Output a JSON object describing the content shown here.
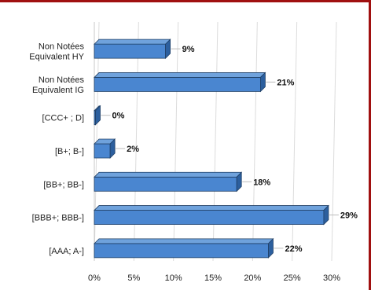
{
  "chart_data": {
    "type": "bar",
    "orientation": "horizontal",
    "style": "3d",
    "categories": [
      "Non Notées\nEquivalent HY",
      "Non Notées\nEquivalent IG",
      "[CCC+ ; D]",
      "[B+; B-]",
      "[BB+; BB-]",
      "[BBB+; BBB-]",
      "[AAA; A-]"
    ],
    "values": [
      9,
      21,
      0,
      2,
      18,
      29,
      22
    ],
    "data_labels": [
      "9%",
      "21%",
      "0%",
      "2%",
      "18%",
      "29%",
      "22%"
    ],
    "x_ticks": [
      "0%",
      "5%",
      "10%",
      "15%",
      "20%",
      "25%",
      "30%"
    ],
    "xlim": [
      0,
      30
    ],
    "unit": "%",
    "grid": "vertical",
    "legend": "none",
    "colors": {
      "bar": "#4a86d0",
      "bar_top": "#6fa2dc",
      "bar_side": "#2c5f9e",
      "outline": "#1f3f66",
      "frame": "#a01010",
      "grid": "#dcdcdc"
    }
  }
}
